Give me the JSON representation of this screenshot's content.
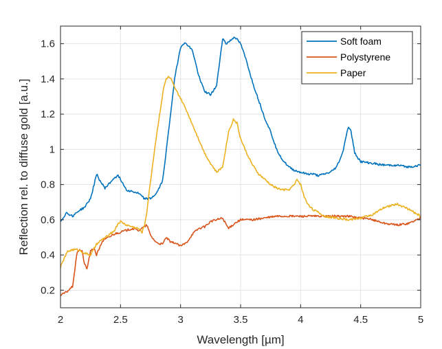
{
  "chart_data": {
    "type": "line",
    "title": "",
    "xlabel": "Wavelength [µm]",
    "ylabel": "Reflection rel. to diffuse gold [a.u.]",
    "xlim": [
      2,
      5
    ],
    "ylim": [
      0.1,
      1.7
    ],
    "xticks": [
      2,
      2.5,
      3,
      3.5,
      4,
      4.5,
      5
    ],
    "xtick_labels": [
      "2",
      "2.5",
      "3",
      "3.5",
      "4",
      "4.5",
      "5"
    ],
    "yticks": [
      0.2,
      0.4,
      0.6,
      0.8,
      1,
      1.2,
      1.4,
      1.6
    ],
    "ytick_labels": [
      "0.2",
      "0.4",
      "0.6",
      "0.8",
      "1",
      "1.2",
      "1.4",
      "1.6"
    ],
    "grid": true,
    "legend_position": "top-right",
    "series": [
      {
        "name": "Soft foam",
        "color": "#0072BD",
        "x": [
          2.0,
          2.05,
          2.1,
          2.15,
          2.2,
          2.25,
          2.28,
          2.3,
          2.33,
          2.37,
          2.4,
          2.45,
          2.48,
          2.5,
          2.55,
          2.6,
          2.65,
          2.7,
          2.75,
          2.8,
          2.85,
          2.9,
          2.95,
          3.0,
          3.02,
          3.05,
          3.1,
          3.15,
          3.2,
          3.25,
          3.3,
          3.35,
          3.38,
          3.42,
          3.45,
          3.5,
          3.55,
          3.6,
          3.65,
          3.7,
          3.75,
          3.8,
          3.85,
          3.9,
          3.95,
          4.0,
          4.05,
          4.1,
          4.15,
          4.2,
          4.25,
          4.3,
          4.35,
          4.38,
          4.4,
          4.42,
          4.45,
          4.5,
          4.6,
          4.7,
          4.8,
          4.9,
          5.0
        ],
        "y": [
          0.59,
          0.64,
          0.62,
          0.65,
          0.67,
          0.72,
          0.8,
          0.86,
          0.82,
          0.78,
          0.8,
          0.84,
          0.85,
          0.83,
          0.77,
          0.76,
          0.75,
          0.72,
          0.72,
          0.75,
          0.82,
          1.1,
          1.4,
          1.58,
          1.6,
          1.6,
          1.56,
          1.42,
          1.33,
          1.31,
          1.36,
          1.63,
          1.6,
          1.62,
          1.64,
          1.6,
          1.5,
          1.38,
          1.28,
          1.18,
          1.1,
          1.0,
          0.94,
          0.9,
          0.88,
          0.87,
          0.86,
          0.86,
          0.85,
          0.86,
          0.87,
          0.9,
          0.98,
          1.08,
          1.13,
          1.1,
          0.98,
          0.93,
          0.92,
          0.91,
          0.91,
          0.9,
          0.91
        ]
      },
      {
        "name": "Polystyrene",
        "color": "#D95319",
        "x": [
          2.0,
          2.05,
          2.1,
          2.12,
          2.14,
          2.16,
          2.18,
          2.2,
          2.22,
          2.25,
          2.28,
          2.3,
          2.35,
          2.4,
          2.45,
          2.5,
          2.55,
          2.6,
          2.65,
          2.7,
          2.72,
          2.75,
          2.8,
          2.85,
          2.88,
          2.92,
          2.95,
          3.0,
          3.05,
          3.1,
          3.15,
          3.2,
          3.25,
          3.3,
          3.35,
          3.4,
          3.45,
          3.5,
          3.6,
          3.7,
          3.8,
          3.9,
          4.0,
          4.1,
          4.2,
          4.3,
          4.4,
          4.5,
          4.6,
          4.7,
          4.8,
          4.9,
          5.0
        ],
        "y": [
          0.17,
          0.19,
          0.22,
          0.32,
          0.42,
          0.43,
          0.42,
          0.35,
          0.32,
          0.42,
          0.44,
          0.4,
          0.48,
          0.5,
          0.52,
          0.53,
          0.54,
          0.55,
          0.54,
          0.56,
          0.57,
          0.51,
          0.47,
          0.46,
          0.5,
          0.47,
          0.47,
          0.45,
          0.47,
          0.52,
          0.55,
          0.56,
          0.59,
          0.6,
          0.61,
          0.55,
          0.58,
          0.6,
          0.6,
          0.61,
          0.62,
          0.62,
          0.62,
          0.62,
          0.62,
          0.62,
          0.62,
          0.61,
          0.6,
          0.58,
          0.57,
          0.58,
          0.61
        ]
      },
      {
        "name": "Paper",
        "color": "#EDB120",
        "x": [
          2.0,
          2.03,
          2.06,
          2.1,
          2.15,
          2.2,
          2.25,
          2.3,
          2.35,
          2.4,
          2.45,
          2.48,
          2.5,
          2.55,
          2.6,
          2.65,
          2.68,
          2.7,
          2.72,
          2.75,
          2.78,
          2.8,
          2.83,
          2.86,
          2.88,
          2.9,
          2.92,
          2.95,
          3.0,
          3.05,
          3.1,
          3.15,
          3.2,
          3.25,
          3.3,
          3.35,
          3.4,
          3.44,
          3.47,
          3.5,
          3.55,
          3.6,
          3.65,
          3.7,
          3.75,
          3.8,
          3.85,
          3.9,
          3.95,
          3.97,
          4.0,
          4.03,
          4.05,
          4.1,
          4.2,
          4.3,
          4.4,
          4.5,
          4.6,
          4.7,
          4.8,
          4.9,
          5.0
        ],
        "y": [
          0.33,
          0.38,
          0.42,
          0.43,
          0.43,
          0.41,
          0.4,
          0.46,
          0.49,
          0.51,
          0.54,
          0.58,
          0.59,
          0.57,
          0.56,
          0.55,
          0.53,
          0.57,
          0.65,
          0.82,
          0.98,
          1.08,
          1.22,
          1.35,
          1.4,
          1.41,
          1.4,
          1.35,
          1.29,
          1.22,
          1.14,
          1.06,
          0.98,
          0.92,
          0.87,
          0.9,
          1.1,
          1.17,
          1.15,
          1.06,
          0.98,
          0.91,
          0.86,
          0.83,
          0.8,
          0.78,
          0.77,
          0.77,
          0.8,
          0.83,
          0.8,
          0.73,
          0.7,
          0.66,
          0.62,
          0.61,
          0.6,
          0.61,
          0.63,
          0.67,
          0.69,
          0.66,
          0.62
        ]
      }
    ]
  }
}
